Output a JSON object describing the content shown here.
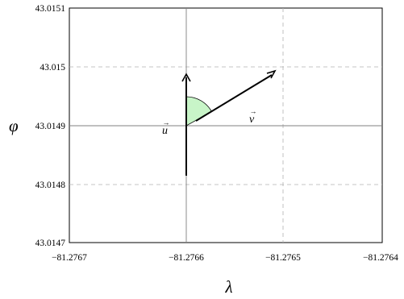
{
  "axes": {
    "x_symbol": "λ",
    "y_symbol": "φ",
    "x_ticks": [
      "−81.2767",
      "−81.2766",
      "−81.2765",
      "−81.2764"
    ],
    "y_ticks": [
      "43.0151",
      "43.015",
      "43.0149",
      "43.0148",
      "43.0147"
    ],
    "grid": "dashed"
  },
  "vectors": {
    "u_label": "u",
    "v_label": "v",
    "arrow_glyph": "→"
  },
  "angle_fill_color": "#c8f5c8",
  "axis_color": "#000000",
  "grid_color": "#b3b3b3",
  "center_line_color": "#808080"
}
